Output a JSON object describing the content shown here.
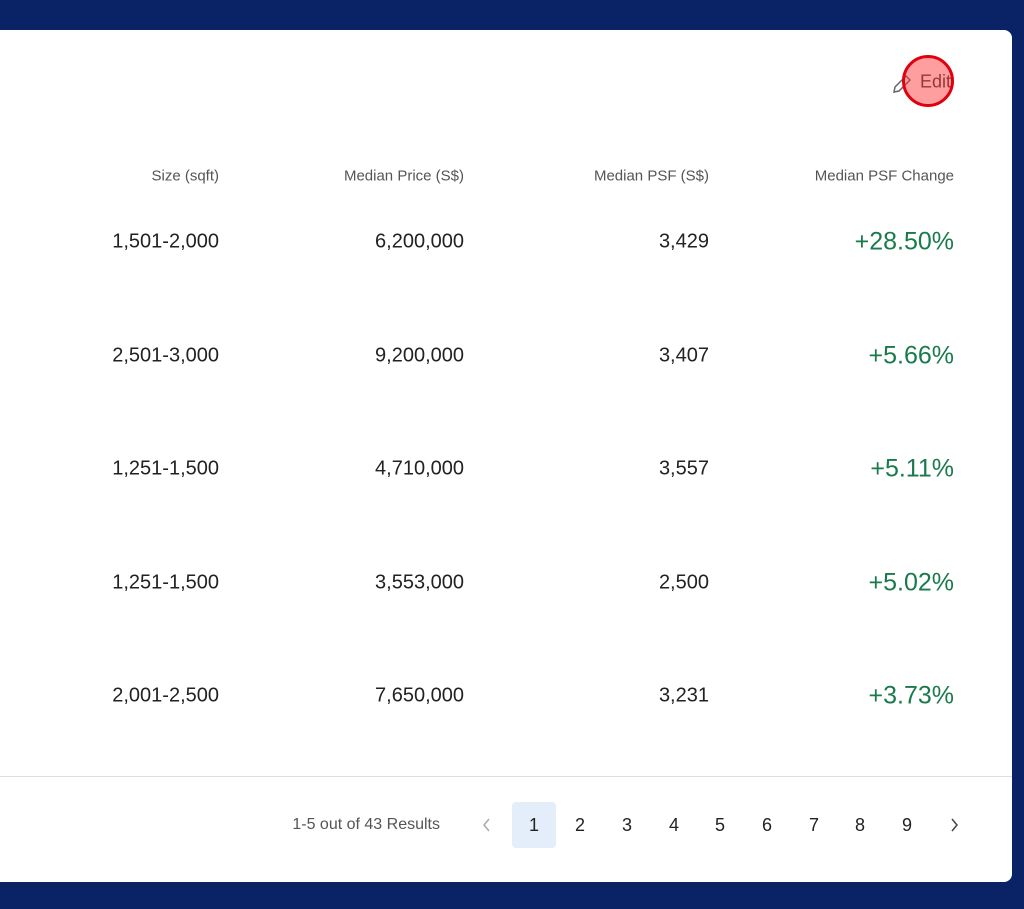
{
  "header": {
    "edit": "Edit"
  },
  "table": {
    "columns": [
      "Size (sqft)",
      "Median Price (S$)",
      "Median PSF (S$)",
      "Median PSF Change"
    ],
    "rows": [
      [
        "1,501-2,000",
        "6,200,000",
        "3,429",
        "+28.50%"
      ],
      [
        "2,501-3,000",
        "9,200,000",
        "3,407",
        "+5.66%"
      ],
      [
        "1,251-1,500",
        "4,710,000",
        "3,557",
        "+5.11%"
      ],
      [
        "1,251-1,500",
        "3,553,000",
        "2,500",
        "+5.02%"
      ],
      [
        "2,001-2,500",
        "7,650,000",
        "3,231",
        "+3.73%"
      ]
    ]
  },
  "pagination": {
    "summary": "1-5 out of 43 Results",
    "pages": [
      "1",
      "2",
      "3",
      "4",
      "5",
      "6",
      "7",
      "8",
      "9"
    ]
  }
}
